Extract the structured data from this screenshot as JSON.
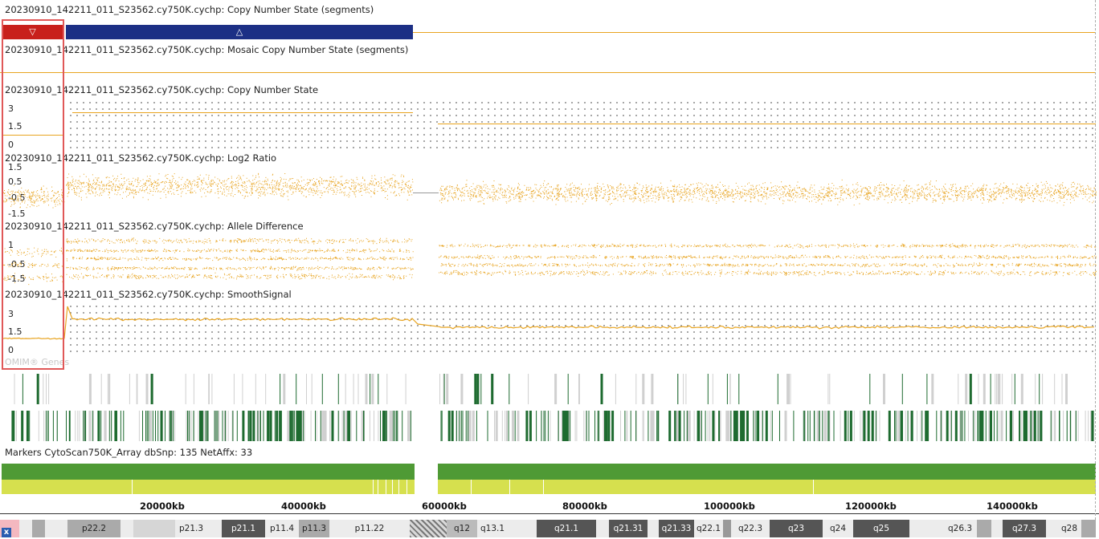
{
  "tracks": {
    "cn_segments": "20230910_142211_011_S23562.cy750K.cychp: Copy Number State (segments)",
    "mosaic_segments": "20230910_142211_011_S23562.cy750K.cychp: Mosaic Copy Number State (segments)",
    "cn_state": "20230910_142211_011_S23562.cy750K.cychp: Copy Number State",
    "log2": "20230910_142211_011_S23562.cy750K.cychp: Log2 Ratio",
    "allele": "20230910_142211_011_S23562.cy750K.cychp: Allele Difference",
    "smooth": "20230910_142211_011_S23562.cy750K.cychp: SmoothSignal"
  },
  "segments": {
    "loss_symbol": "▽",
    "gain_symbol": "△"
  },
  "axes": {
    "cn": [
      "3",
      "1.5",
      "0"
    ],
    "log2": [
      "1.5",
      "0.5",
      "-0.5",
      "-1.5"
    ],
    "allele": [
      "1",
      "-0.5",
      "-1.5"
    ],
    "smooth": [
      "3",
      "1.5",
      "0"
    ]
  },
  "omim_label": "OMIM® Genes",
  "markers_label": "Markers CytoScan750K_Array dbSnp: 135 NetAffx: 33",
  "ruler": [
    "20000kb",
    "40000kb",
    "60000kb",
    "80000kb",
    "100000kb",
    "120000kb",
    "140000kb"
  ],
  "bands": [
    "p22.2",
    "p21.3",
    "p21.1",
    "p11.4",
    "p11.3",
    "p11.22",
    "q12",
    "q13.1",
    "q21.1",
    "q21.31",
    "q21.33",
    "q22.1",
    "q22.3",
    "q23",
    "q24",
    "q25",
    "q26.3",
    "q27.3",
    "q28"
  ],
  "colors": {
    "accent": "#e8a420",
    "loss": "#c8201c",
    "gain": "#1c2f85",
    "gene_green": "#1e6b30",
    "marker_dark": "#4f9a35",
    "marker_light": "#d6e04e"
  }
}
